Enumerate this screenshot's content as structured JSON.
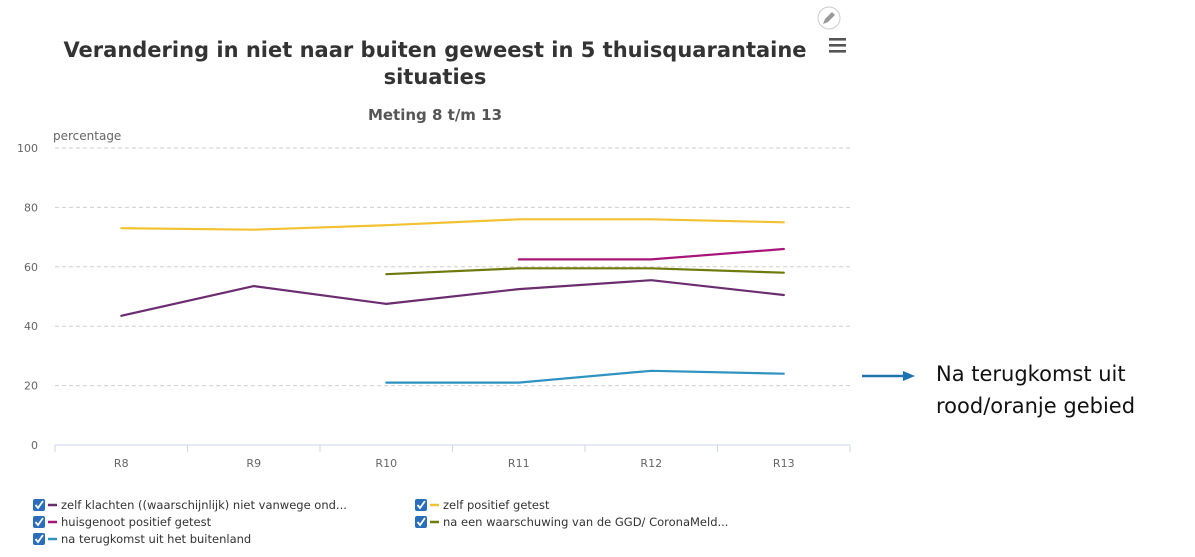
{
  "chart_data": {
    "type": "line",
    "title_line1": "Verandering in niet naar buiten geweest in 5 thuisquarantaine",
    "title_line2": "situaties",
    "subtitle": "Meting 8 t/m 13",
    "ylabel": "percentage",
    "xlabel": "",
    "categories": [
      "R8",
      "R9",
      "R10",
      "R11",
      "R12",
      "R13"
    ],
    "y_ticks": [
      0,
      20,
      40,
      60,
      80,
      100
    ],
    "ylim": [
      0,
      100
    ],
    "grid": true,
    "legend_position": "bottom-left",
    "series": [
      {
        "name": "zelf klachten ((waarschijnlijk) niet vanwege ond...",
        "color": "#6b2d6f",
        "values": [
          43.5,
          53.5,
          47.5,
          52.5,
          55.5,
          50.5
        ]
      },
      {
        "name": "zelf positief getest",
        "color": "#f2c232",
        "values": [
          73,
          72.5,
          74,
          76,
          76,
          75
        ]
      },
      {
        "name": "huisgenoot positief getest",
        "color": "#a8157a",
        "values": [
          null,
          null,
          null,
          62.5,
          62.5,
          66
        ]
      },
      {
        "name": "na een waarschuwing van de GGD/ CoronaMeld...",
        "color": "#6e7a0d",
        "values": [
          null,
          null,
          57.5,
          59.5,
          59.5,
          58
        ]
      },
      {
        "name": "na terugkomst uit het buitenland",
        "color": "#2e93c1",
        "values": [
          null,
          null,
          21,
          21,
          25,
          24
        ]
      }
    ]
  },
  "annotation": {
    "line1": "Na terugkomst uit",
    "line2": "rood/oranje gebied",
    "arrow_color": "#1f73b0",
    "target_series": 4
  },
  "icons": {
    "edit": "pencil-icon",
    "menu": "hamburger-menu-icon",
    "checkbox": "checkbox-checked-icon"
  }
}
